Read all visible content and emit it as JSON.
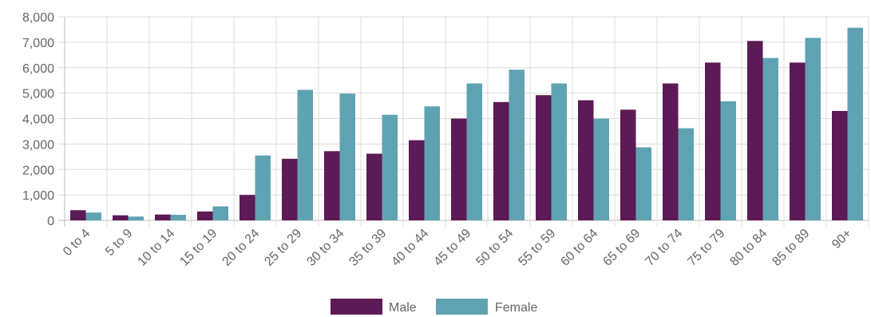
{
  "chart_data": {
    "type": "bar",
    "title": "",
    "xlabel": "",
    "ylabel": "",
    "ylim": [
      0,
      8000
    ],
    "yticks": [
      "0",
      "1,000",
      "2,000",
      "3,000",
      "4,000",
      "5,000",
      "6,000",
      "7,000",
      "8,000"
    ],
    "grid": true,
    "legend_position": "bottom",
    "categories": [
      "0 to 4",
      "5 to 9",
      "10 to 14",
      "15 to 19",
      "20 to 24",
      "25 to 29",
      "30 to 34",
      "35 to 39",
      "40 to 44",
      "45 to 49",
      "50 to 54",
      "55 to 59",
      "60 to 64",
      "65 to 69",
      "70 to 74",
      "75 to 79",
      "80 to 84",
      "85 to 89",
      "90+"
    ],
    "series": [
      {
        "name": "Male",
        "color": "#5c1a56",
        "values": [
          400,
          200,
          230,
          350,
          1000,
          2420,
          2720,
          2620,
          3150,
          4000,
          4650,
          4920,
          4720,
          4350,
          5380,
          6200,
          7050,
          6200,
          4300
        ]
      },
      {
        "name": "Female",
        "color": "#5fa3b3",
        "values": [
          310,
          150,
          220,
          550,
          2550,
          5130,
          4980,
          4150,
          4480,
          5380,
          5920,
          5380,
          4000,
          2870,
          3620,
          4680,
          6380,
          7170,
          7570
        ]
      }
    ]
  }
}
